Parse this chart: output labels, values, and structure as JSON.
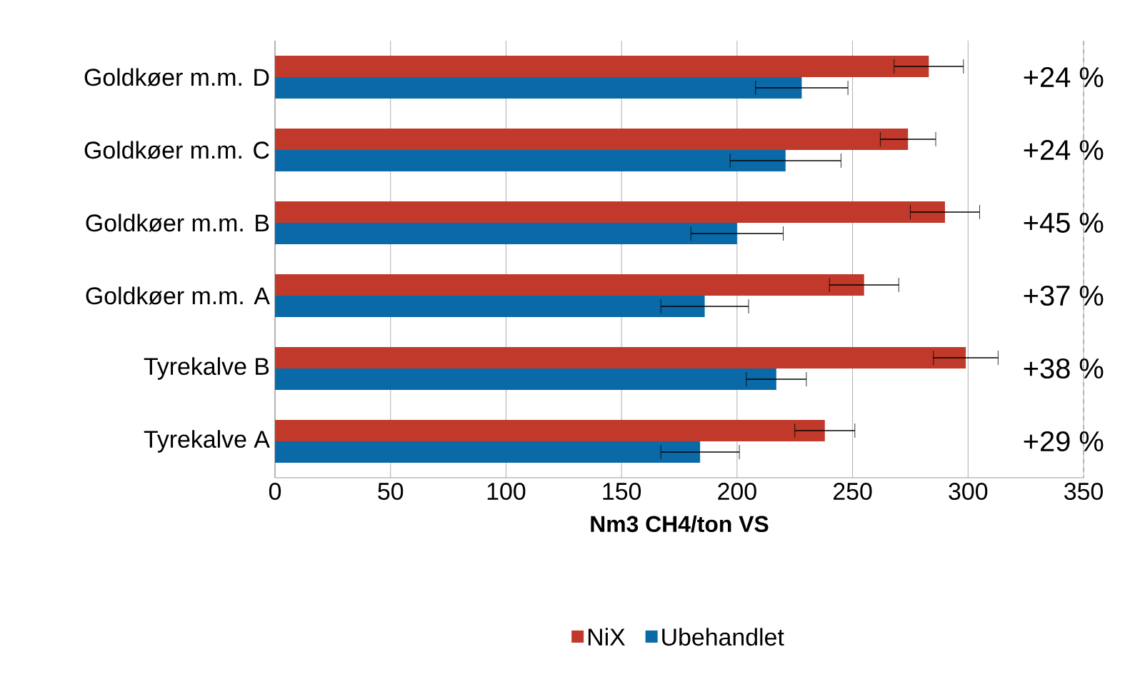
{
  "chart_data": {
    "type": "bar",
    "orientation": "horizontal",
    "xlabel": "Nm3 CH4/ton VS",
    "categories": [
      "Goldkøer m.m. D",
      "Goldkøer m.m. C",
      "Goldkøer m.m. B",
      "Goldkøer m.m. A",
      "Tyrekalve B",
      "Tyrekalve A"
    ],
    "series": [
      {
        "name": "NiX",
        "color": "#c0392b",
        "values": [
          283,
          274,
          290,
          255,
          299,
          238
        ],
        "errors": [
          15,
          12,
          15,
          15,
          14,
          13
        ]
      },
      {
        "name": "Ubehandlet",
        "color": "#0a6aa8",
        "values": [
          228,
          221,
          200,
          186,
          217,
          184
        ],
        "errors": [
          20,
          24,
          20,
          19,
          13,
          17
        ]
      }
    ],
    "xlim": [
      0,
      350
    ],
    "xticks": [
      0,
      50,
      100,
      150,
      200,
      250,
      300,
      350
    ],
    "grid": "x",
    "legend": "bottom",
    "annotations": [
      "+24 %",
      "+24 %",
      "+45 %",
      "+37 %",
      "+38 %",
      "+29 %"
    ]
  }
}
